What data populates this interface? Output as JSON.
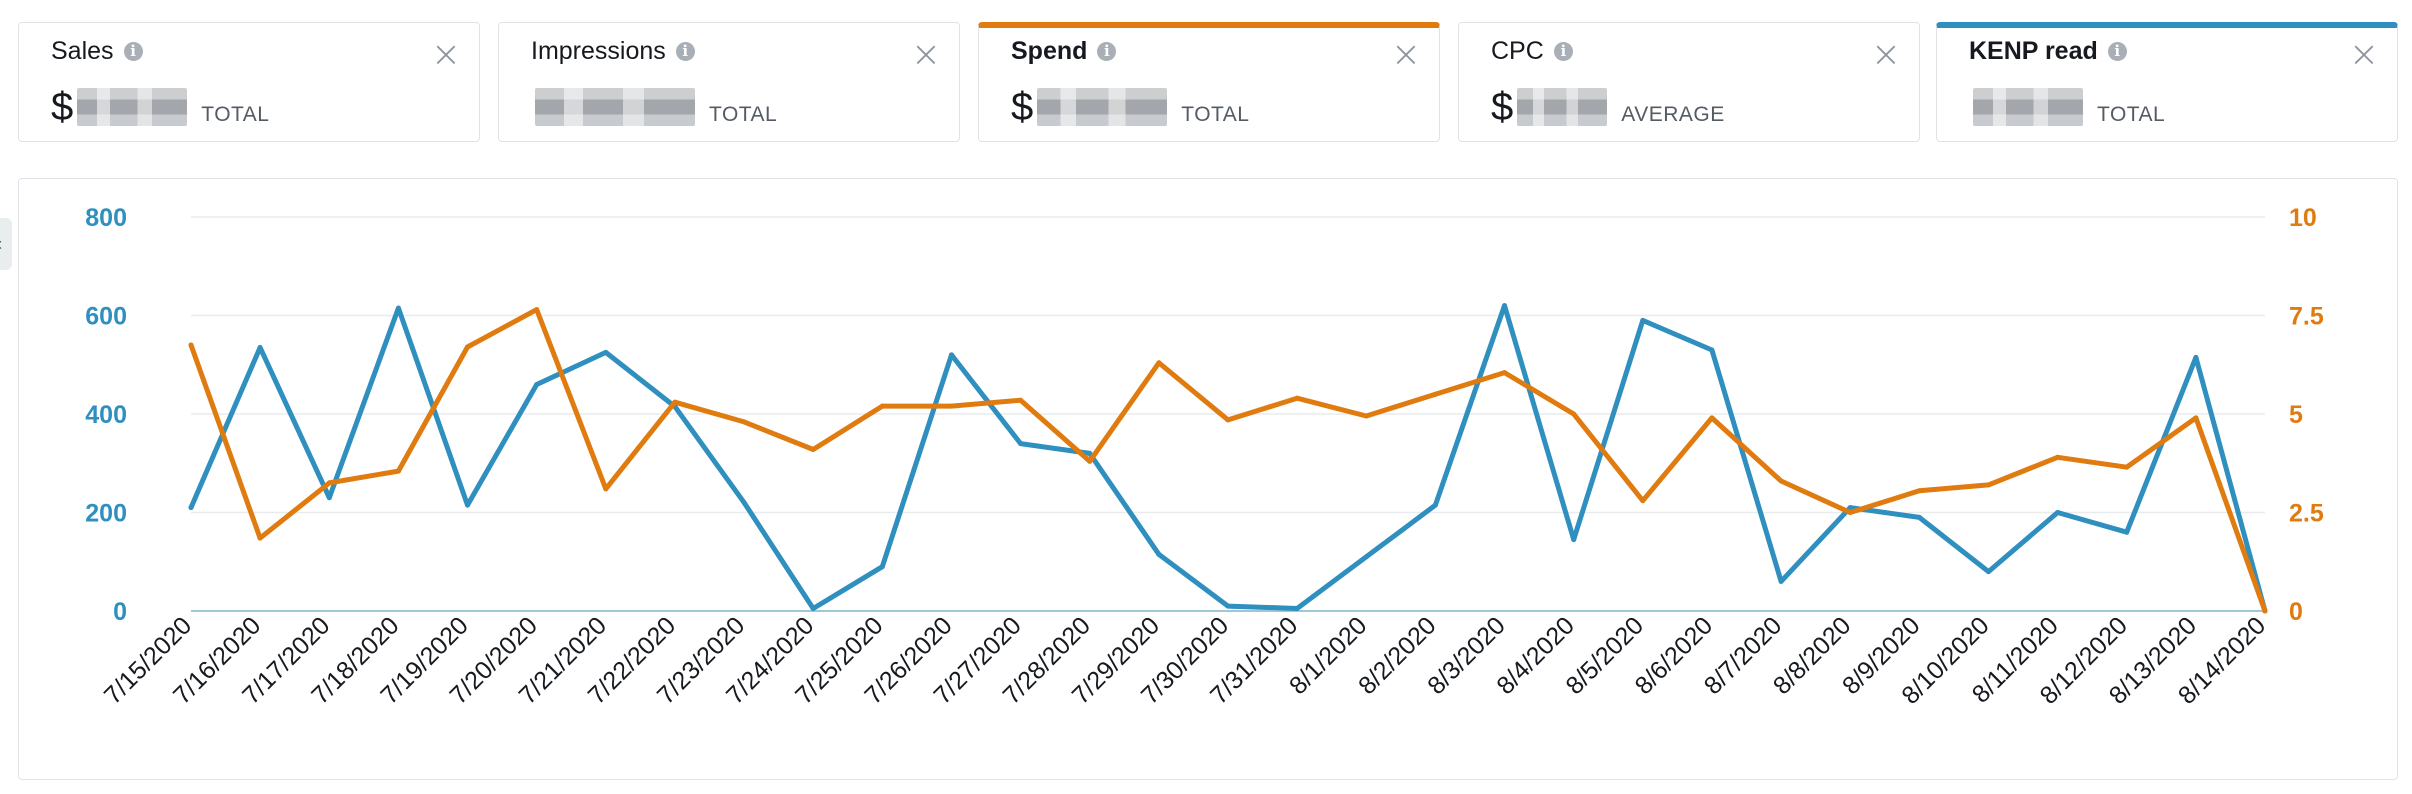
{
  "metrics": [
    {
      "title": "Sales",
      "prefix": "$",
      "kind": "TOTAL",
      "selected": false
    },
    {
      "title": "Impressions",
      "prefix": "",
      "kind": "TOTAL",
      "selected": false
    },
    {
      "title": "Spend",
      "prefix": "$",
      "kind": "TOTAL",
      "selected": true,
      "color": "#e07b10"
    },
    {
      "title": "CPC",
      "prefix": "$",
      "kind": "AVERAGE",
      "selected": false
    },
    {
      "title": "KENP read",
      "prefix": "",
      "kind": "TOTAL",
      "selected": true,
      "color": "#2f8fbf"
    }
  ],
  "icons": {
    "info": "info-icon",
    "close": "close-icon",
    "collapse": "chevron-left-icon"
  },
  "side_tab_glyph": "‹",
  "colors": {
    "left_axis": "#2f8fbf",
    "right_axis": "#e07b10",
    "grid": "#e9ebed"
  },
  "chart_data": {
    "type": "line",
    "categories": [
      "7/15/2020",
      "7/16/2020",
      "7/17/2020",
      "7/18/2020",
      "7/19/2020",
      "7/20/2020",
      "7/21/2020",
      "7/22/2020",
      "7/23/2020",
      "7/24/2020",
      "7/25/2020",
      "7/26/2020",
      "7/27/2020",
      "7/28/2020",
      "7/29/2020",
      "7/30/2020",
      "7/31/2020",
      "8/1/2020",
      "8/2/2020",
      "8/3/2020",
      "8/4/2020",
      "8/5/2020",
      "8/6/2020",
      "8/7/2020",
      "8/8/2020",
      "8/9/2020",
      "8/10/2020",
      "8/11/2020",
      "8/12/2020",
      "8/13/2020",
      "8/14/2020"
    ],
    "y_left": {
      "ticks": [
        "0",
        "200",
        "400",
        "600",
        "800"
      ],
      "range": [
        0,
        800
      ],
      "color": "#2f8fbf"
    },
    "y_right": {
      "ticks": [
        "0",
        "2.5",
        "5",
        "7.5",
        "10"
      ],
      "range": [
        0,
        10
      ],
      "color": "#e07b10"
    },
    "grid": true,
    "legend": "none",
    "series": [
      {
        "axis": "left",
        "color": "#2f8fbf",
        "values": [
          210,
          535,
          230,
          615,
          215,
          460,
          525,
          415,
          220,
          5,
          90,
          520,
          340,
          320,
          115,
          10,
          5,
          110,
          215,
          620,
          145,
          590,
          530,
          60,
          210,
          190,
          80,
          200,
          160,
          515,
          0
        ]
      },
      {
        "axis": "right",
        "color": "#e07b10",
        "values": [
          6.75,
          1.85,
          3.25,
          3.55,
          6.7,
          7.65,
          3.1,
          5.3,
          4.8,
          4.1,
          5.2,
          5.2,
          5.35,
          3.8,
          6.3,
          4.85,
          5.4,
          4.95,
          5.5,
          6.05,
          5.0,
          2.8,
          4.9,
          3.3,
          2.5,
          3.05,
          3.2,
          3.9,
          3.65,
          4.9,
          0
        ]
      }
    ]
  }
}
